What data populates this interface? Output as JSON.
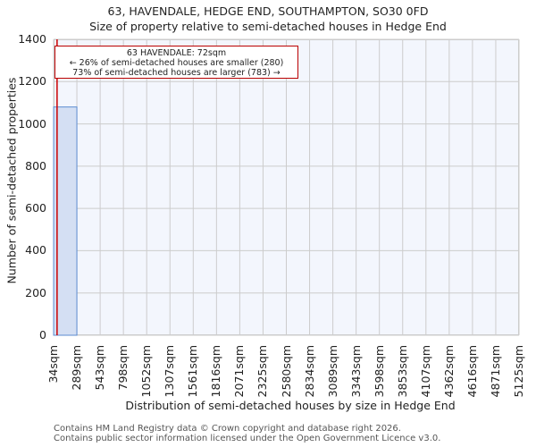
{
  "title": "63, HAVENDALE, HEDGE END, SOUTHAMPTON, SO30 0FD",
  "subtitle": "Size of property relative to semi-detached houses in Hedge End",
  "annotation": {
    "line1": "63 HAVENDALE: 72sqm",
    "line2": "← 26% of semi-detached houses are smaller (280)",
    "line3": "73% of semi-detached houses are larger (783) →"
  },
  "footer": {
    "line1": "Contains HM Land Registry data © Crown copyright and database right 2026.",
    "line2": "Contains public sector information licensed under the Open Government Licence v3.0."
  },
  "colors": {
    "bar_fill": "#d4dff3",
    "bar_edge": "#5b8bd0",
    "marker": "#cc0000",
    "plot_bg": "#f3f6fd",
    "grid": "#cccccc"
  },
  "chart_data": {
    "type": "bar",
    "title": "63, HAVENDALE, HEDGE END, SOUTHAMPTON, SO30 0FD",
    "subtitle": "Size of property relative to semi-detached houses in Hedge End",
    "xlabel": "Distribution of semi-detached houses by size in Hedge End",
    "ylabel": "Number of semi-detached properties",
    "categories": [
      "34sqm",
      "289sqm",
      "543sqm",
      "798sqm",
      "1052sqm",
      "1307sqm",
      "1561sqm",
      "1816sqm",
      "2071sqm",
      "2325sqm",
      "2580sqm",
      "2834sqm",
      "3089sqm",
      "3343sqm",
      "3598sqm",
      "3853sqm",
      "4107sqm",
      "4362sqm",
      "4616sqm",
      "4871sqm",
      "5125sqm"
    ],
    "values": [
      1080,
      0,
      0,
      0,
      0,
      0,
      0,
      0,
      0,
      0,
      0,
      0,
      0,
      0,
      0,
      0,
      0,
      0,
      0,
      0
    ],
    "yticks": [
      0,
      200,
      400,
      600,
      800,
      1000,
      1200,
      1400
    ],
    "ylim": [
      0,
      1400
    ],
    "grid": true,
    "marker_value": 72,
    "marker_label": "63 HAVENDALE: 72sqm"
  }
}
